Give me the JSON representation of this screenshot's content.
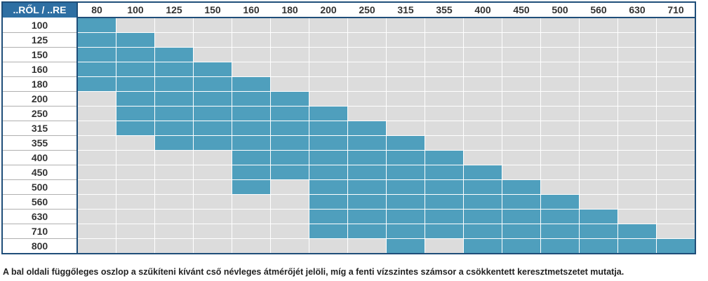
{
  "table": {
    "corner": "..RŐL / ..RE",
    "columns": [
      "80",
      "100",
      "125",
      "150",
      "160",
      "180",
      "200",
      "250",
      "315",
      "355",
      "400",
      "450",
      "500",
      "560",
      "630",
      "710"
    ],
    "colors": {
      "on": "#4f9fbd",
      "off": "#dcdcdc"
    },
    "rows": [
      {
        "label": "100",
        "filled": [
          true,
          false,
          false,
          false,
          false,
          false,
          false,
          false,
          false,
          false,
          false,
          false,
          false,
          false,
          false,
          false
        ]
      },
      {
        "label": "125",
        "filled": [
          true,
          true,
          false,
          false,
          false,
          false,
          false,
          false,
          false,
          false,
          false,
          false,
          false,
          false,
          false,
          false
        ]
      },
      {
        "label": "150",
        "filled": [
          true,
          true,
          true,
          false,
          false,
          false,
          false,
          false,
          false,
          false,
          false,
          false,
          false,
          false,
          false,
          false
        ]
      },
      {
        "label": "160",
        "filled": [
          true,
          true,
          true,
          true,
          false,
          false,
          false,
          false,
          false,
          false,
          false,
          false,
          false,
          false,
          false,
          false
        ]
      },
      {
        "label": "180",
        "filled": [
          true,
          true,
          true,
          true,
          true,
          false,
          false,
          false,
          false,
          false,
          false,
          false,
          false,
          false,
          false,
          false
        ]
      },
      {
        "label": "200",
        "filled": [
          false,
          true,
          true,
          true,
          true,
          true,
          false,
          false,
          false,
          false,
          false,
          false,
          false,
          false,
          false,
          false
        ]
      },
      {
        "label": "250",
        "filled": [
          false,
          true,
          true,
          true,
          true,
          true,
          true,
          false,
          false,
          false,
          false,
          false,
          false,
          false,
          false,
          false
        ]
      },
      {
        "label": "315",
        "filled": [
          false,
          true,
          true,
          true,
          true,
          true,
          true,
          true,
          false,
          false,
          false,
          false,
          false,
          false,
          false,
          false
        ]
      },
      {
        "label": "355",
        "filled": [
          false,
          false,
          true,
          true,
          true,
          true,
          true,
          true,
          true,
          false,
          false,
          false,
          false,
          false,
          false,
          false
        ]
      },
      {
        "label": "400",
        "filled": [
          false,
          false,
          false,
          false,
          true,
          true,
          true,
          true,
          true,
          true,
          false,
          false,
          false,
          false,
          false,
          false
        ]
      },
      {
        "label": "450",
        "filled": [
          false,
          false,
          false,
          false,
          true,
          true,
          true,
          true,
          true,
          true,
          true,
          false,
          false,
          false,
          false,
          false
        ]
      },
      {
        "label": "500",
        "filled": [
          false,
          false,
          false,
          false,
          true,
          false,
          true,
          true,
          true,
          true,
          true,
          true,
          false,
          false,
          false,
          false
        ]
      },
      {
        "label": "560",
        "filled": [
          false,
          false,
          false,
          false,
          false,
          false,
          true,
          true,
          true,
          true,
          true,
          true,
          true,
          false,
          false,
          false
        ]
      },
      {
        "label": "630",
        "filled": [
          false,
          false,
          false,
          false,
          false,
          false,
          true,
          true,
          true,
          true,
          true,
          true,
          true,
          true,
          false,
          false
        ]
      },
      {
        "label": "710",
        "filled": [
          false,
          false,
          false,
          false,
          false,
          false,
          true,
          true,
          true,
          true,
          true,
          true,
          true,
          true,
          true,
          false
        ]
      },
      {
        "label": "800",
        "filled": [
          false,
          false,
          false,
          false,
          false,
          false,
          false,
          false,
          true,
          false,
          true,
          true,
          true,
          true,
          true,
          true
        ]
      }
    ],
    "caption": "A bal oldali függőleges oszlop a szűkíteni kívánt cső névleges átmérőjét jelöli, míg a fenti vízszintes számsor a csökkentett keresztmetszetet mutatja."
  }
}
